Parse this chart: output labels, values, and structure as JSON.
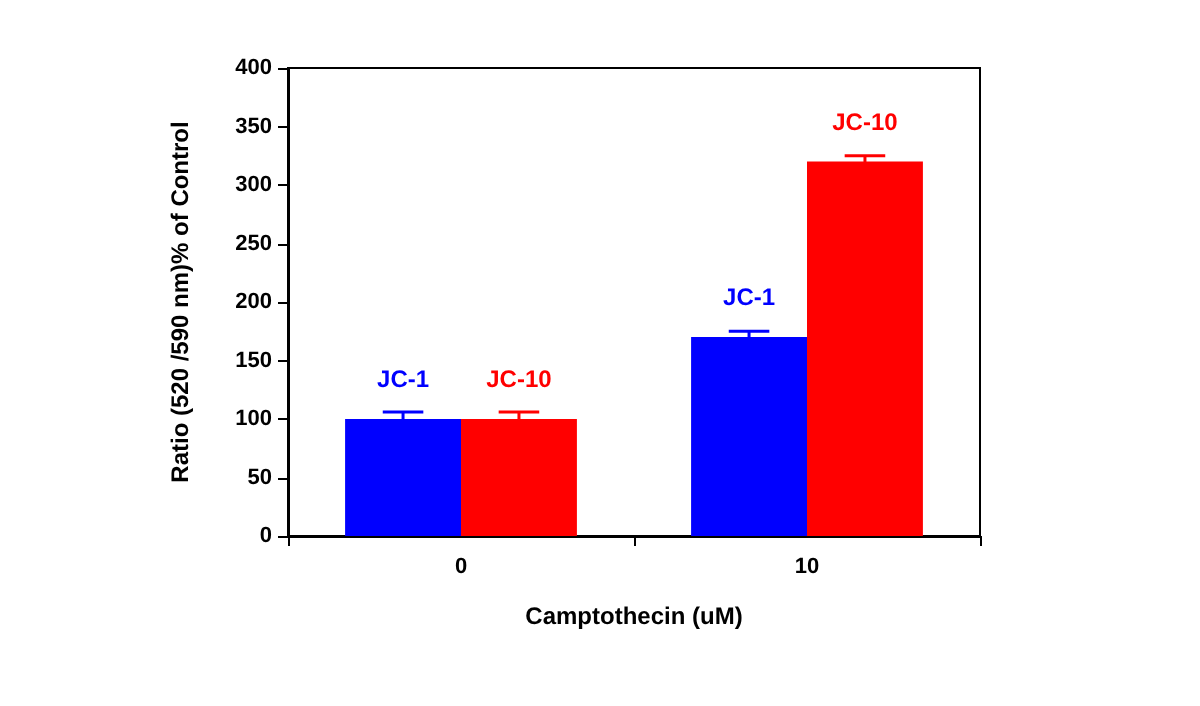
{
  "chart_data": {
    "type": "bar",
    "xlabel": "Camptothecin (uM)",
    "ylabel": "Ratio (520 /590 nm)% of Control",
    "categories": [
      "0",
      "10"
    ],
    "series": [
      {
        "name": "JC-1",
        "color": "#0000ff",
        "values": [
          100,
          170
        ],
        "errors": [
          6,
          5
        ]
      },
      {
        "name": "JC-10",
        "color": "#ff0000",
        "values": [
          100,
          320
        ],
        "errors": [
          6,
          5
        ]
      }
    ],
    "ylim": [
      0,
      400
    ],
    "yticks": [
      0,
      50,
      100,
      150,
      200,
      250,
      300,
      350,
      400
    ],
    "grid": false,
    "legend": false
  }
}
